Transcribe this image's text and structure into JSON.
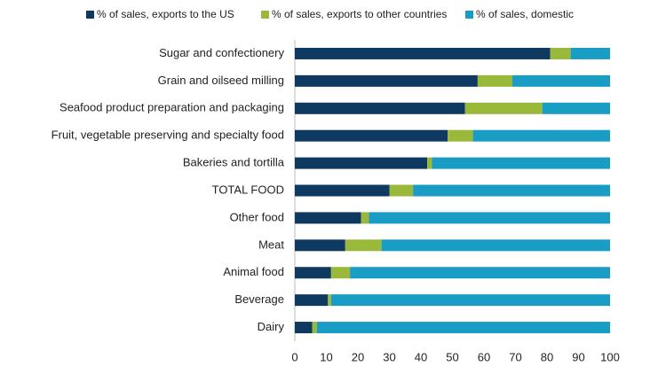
{
  "chart_data": {
    "type": "bar",
    "orientation": "horizontal",
    "stacked": true,
    "categories": [
      "Sugar and confectionery",
      "Grain and oilseed milling",
      "Seafood product preparation and packaging",
      "Fruit, vegetable preserving and specialty food",
      "Bakeries and tortilla",
      "TOTAL FOOD",
      "Other food",
      "Meat",
      "Animal food",
      "Beverage",
      "Dairy"
    ],
    "series": [
      {
        "name": "% of sales, exports to the US",
        "color": "#0e3a62",
        "values": [
          81,
          58,
          54,
          48.5,
          42,
          30,
          21,
          16,
          11.5,
          10.5,
          5.5
        ]
      },
      {
        "name": "% of sales, exports to other countries",
        "color": "#9ab83a",
        "values": [
          6.5,
          11,
          24.5,
          8,
          1.5,
          7.5,
          2.5,
          11.5,
          6,
          1,
          1.5
        ]
      },
      {
        "name": "% of sales, domestic",
        "color": "#1a9dc4",
        "values": [
          12.5,
          31,
          21.5,
          43.5,
          56.5,
          62.5,
          76.5,
          72.5,
          82.5,
          88.5,
          93
        ]
      }
    ],
    "xlim": [
      0,
      100
    ],
    "xticks": [
      0,
      10,
      20,
      30,
      40,
      50,
      60,
      70,
      80,
      90,
      100
    ],
    "grid": false,
    "legend": "top"
  }
}
